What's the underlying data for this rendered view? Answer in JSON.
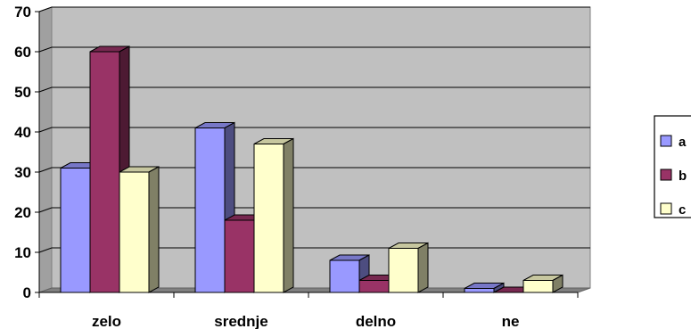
{
  "chart_data": {
    "type": "bar",
    "title": "",
    "xlabel": "",
    "ylabel": "",
    "categories": [
      "zelo",
      "srednje",
      "delno",
      "ne"
    ],
    "series": [
      {
        "name": "a",
        "values": [
          31,
          41,
          8,
          1
        ],
        "color": "#9999ff"
      },
      {
        "name": "b",
        "values": [
          60,
          18,
          3,
          0
        ],
        "color": "#993366"
      },
      {
        "name": "c",
        "values": [
          30,
          37,
          11,
          3
        ],
        "color": "#ffffcc"
      }
    ],
    "ylim": [
      0,
      70
    ],
    "yticks": [
      0,
      10,
      20,
      30,
      40,
      50,
      60,
      70
    ],
    "grid": true,
    "legend": "right",
    "style": "3d-column",
    "wall_color": "#c0c0c0"
  }
}
